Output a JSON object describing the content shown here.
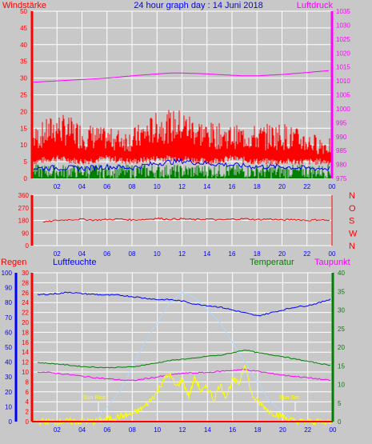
{
  "chart_data": [
    {
      "type": "line",
      "title": "24 hour graph day : 14 Juni 2018",
      "left_axis_label": "Windstärke",
      "right_axis_label": "Luftdruck",
      "x_ticks": [
        "02",
        "04",
        "06",
        "08",
        "10",
        "12",
        "14",
        "16",
        "18",
        "20",
        "22",
        "00"
      ],
      "left_ylim": [
        0,
        50
      ],
      "left_ticks": [
        0,
        5,
        10,
        15,
        20,
        25,
        30,
        35,
        40,
        45,
        50
      ],
      "right_ylim": [
        975,
        1035
      ],
      "right_ticks": [
        975,
        980,
        985,
        990,
        995,
        1000,
        1005,
        1010,
        1015,
        1020,
        1025,
        1030,
        1035
      ],
      "colors": {
        "left_axis": "#ff0000",
        "right_axis": "#ff00ff",
        "title": "#0000ff",
        "gust": "#ff0000",
        "wind": "#008000",
        "avg": "#0000ff",
        "pressure": "#ff00ff"
      },
      "series": [
        {
          "axis": "right",
          "x": [
            0,
            2,
            4,
            6,
            8,
            10,
            11,
            12,
            14,
            16,
            17,
            18,
            20,
            22,
            24
          ],
          "values": [
            1009.5,
            1010.0,
            1010.5,
            1011.0,
            1011.8,
            1012.5,
            1012.8,
            1012.8,
            1012.5,
            1012.0,
            1011.8,
            1011.8,
            1012.3,
            1013.0,
            1013.8
          ]
        },
        {
          "axis": "left",
          "x": [
            0,
            2,
            4,
            6,
            8,
            10,
            12,
            14,
            16,
            18,
            20,
            22,
            24
          ],
          "values_min": [
            4,
            5,
            4,
            5,
            4,
            5,
            5,
            4,
            5,
            4,
            4,
            4,
            4
          ],
          "values_max": [
            15,
            20,
            17,
            15,
            15,
            20,
            21,
            17,
            16,
            16,
            17,
            14,
            12
          ]
        },
        {
          "axis": "left",
          "x": [
            0,
            2,
            4,
            6,
            8,
            10,
            12,
            14,
            16,
            18,
            20,
            22,
            24
          ],
          "values": [
            3,
            3.2,
            3,
            3.5,
            3.2,
            4.5,
            5.2,
            4.5,
            4,
            3.5,
            3.5,
            3,
            3
          ]
        }
      ]
    },
    {
      "type": "line",
      "ylim": [
        0,
        360
      ],
      "y_ticks": [
        0,
        90,
        180,
        270,
        360
      ],
      "right_labels": [
        "N",
        "W",
        "S",
        "O",
        "N"
      ],
      "x_ticks": [
        "02",
        "04",
        "06",
        "08",
        "10",
        "12",
        "14",
        "16",
        "18",
        "20",
        "22",
        "00"
      ],
      "colors": {
        "axis": "#ff0000",
        "line": "#ff0000"
      },
      "series": [
        {
          "x": [
            0,
            1,
            2,
            3,
            4,
            5,
            6,
            7,
            8,
            9,
            10,
            11,
            12,
            13,
            14,
            15,
            16,
            17,
            18,
            19,
            20,
            21,
            22,
            23,
            24
          ],
          "values": [
            200,
            168,
            180,
            185,
            188,
            182,
            186,
            190,
            183,
            187,
            195,
            188,
            192,
            185,
            190,
            183,
            188,
            192,
            185,
            190,
            182,
            187,
            180,
            185,
            178
          ]
        }
      ]
    },
    {
      "type": "line",
      "labels": {
        "rain": "Regen",
        "humidity": "Luftfeuchte",
        "temperature": "Temperatur",
        "dewpoint": "Taupunkt",
        "sunrise": "Sun Rise",
        "sunset": "Sun Set"
      },
      "x_ticks": [
        "02",
        "04",
        "06",
        "08",
        "10",
        "12",
        "14",
        "16",
        "18",
        "20",
        "22",
        "00"
      ],
      "rain_ylim": [
        0,
        30
      ],
      "rain_ticks": [
        0,
        2,
        4,
        6,
        8,
        10,
        12,
        14,
        16,
        18,
        20,
        22,
        24,
        26,
        28,
        30
      ],
      "humidity_ylim": [
        0,
        100
      ],
      "humidity_ticks": [
        0,
        10,
        20,
        30,
        40,
        50,
        60,
        70,
        80,
        90,
        100
      ],
      "temp_ylim": [
        0,
        40
      ],
      "temp_ticks": [
        0,
        5,
        10,
        15,
        20,
        25,
        30,
        35,
        40
      ],
      "sunrise_hour": 5.3,
      "sunset_hour": 21.0,
      "colors": {
        "rain": "#ff0000",
        "humidity": "#0000ff",
        "temperature": "#008000",
        "dewpoint": "#ff00ff",
        "solar": "#ffff00",
        "uv": "#b0d8ff"
      },
      "series": [
        {
          "name": "Luftfeuchte",
          "axis": "humidity",
          "x": [
            0,
            1,
            2,
            3,
            4,
            5,
            6,
            7,
            8,
            9,
            10,
            11,
            12,
            13,
            14,
            15,
            16,
            17,
            18,
            19,
            20,
            21,
            22,
            23,
            24
          ],
          "values": [
            85,
            85.5,
            86,
            87,
            86,
            85.5,
            85,
            85,
            84,
            83,
            82,
            82,
            81,
            79,
            78,
            77,
            75,
            73,
            71,
            73,
            75,
            77,
            78,
            80,
            83
          ]
        },
        {
          "name": "Temperatur",
          "axis": "temp",
          "x": [
            0,
            2,
            4,
            6,
            8,
            10,
            11,
            12,
            13,
            14,
            15,
            16,
            17,
            18,
            19,
            20,
            21,
            22,
            24
          ],
          "values": [
            16,
            15.5,
            14.8,
            14.5,
            14.7,
            15.8,
            16.4,
            16.8,
            17.0,
            17.6,
            17.8,
            18.5,
            19.3,
            18.5,
            18.0,
            17.5,
            16.8,
            16.2,
            15.0
          ]
        },
        {
          "name": "Taupunkt",
          "axis": "temp",
          "x": [
            0,
            2,
            4,
            6,
            8,
            10,
            12,
            14,
            16,
            17,
            18,
            20,
            22,
            24
          ],
          "values": [
            13.5,
            13.0,
            12.2,
            11.5,
            11.0,
            12.0,
            13.0,
            13.2,
            13.8,
            14.0,
            13.5,
            12.5,
            11.8,
            11.0
          ]
        },
        {
          "name": "Solar",
          "axis": "rain",
          "x": [
            0,
            5,
            6,
            7,
            8,
            9,
            10,
            10.5,
            11,
            11.5,
            12,
            12.5,
            13,
            13.5,
            14,
            14.5,
            15,
            15.5,
            16,
            16.5,
            17,
            17.5,
            18,
            19,
            20,
            21,
            24
          ],
          "values": [
            0,
            0,
            0.5,
            1,
            1.5,
            3,
            6,
            8.5,
            9.5,
            7,
            8.5,
            5,
            9,
            6,
            7,
            4.5,
            7.5,
            5,
            8.5,
            7.5,
            12,
            5.5,
            4,
            2,
            1,
            0,
            0
          ]
        },
        {
          "name": "UV",
          "axis": "rain",
          "x": [
            5,
            7,
            9,
            11,
            12,
            13,
            15,
            17,
            19,
            21
          ],
          "values": [
            0,
            6,
            16,
            24,
            26,
            25,
            20,
            12,
            4,
            0
          ]
        },
        {
          "name": "Regen",
          "axis": "rain",
          "x": [
            0,
            24
          ],
          "values": [
            0,
            0
          ]
        }
      ]
    }
  ]
}
